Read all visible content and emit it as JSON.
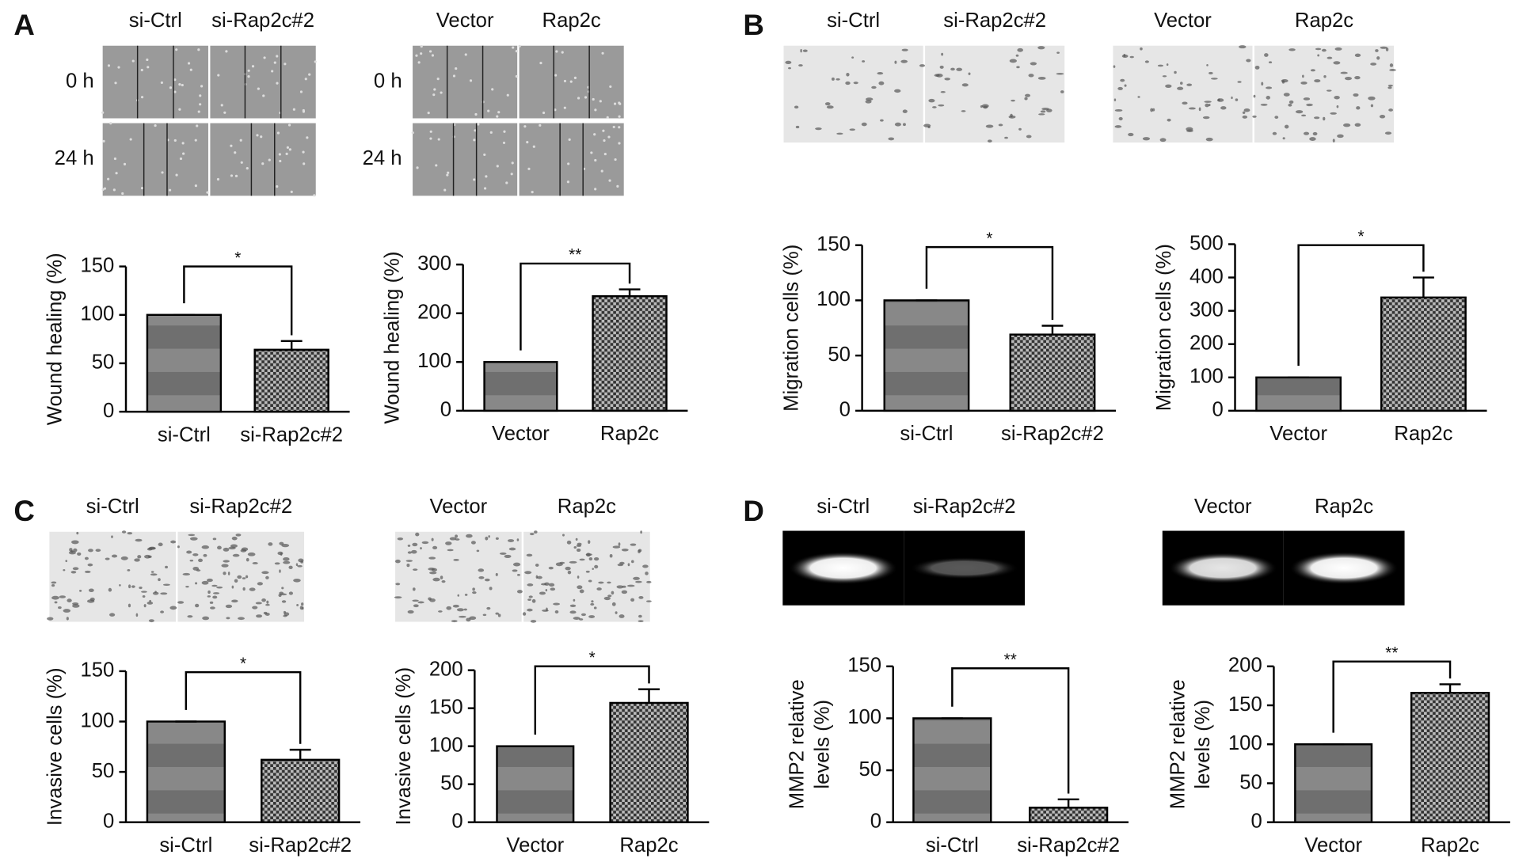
{
  "panels": [
    {
      "label": "A",
      "groups": [
        {
          "columns": [
            "si-Ctrl",
            "si-Rap2c#2"
          ],
          "rows": [
            "0 h",
            "24 h"
          ]
        },
        {
          "columns": [
            "Vector",
            "Rap2c"
          ],
          "rows": [
            "0 h",
            "24 h"
          ]
        }
      ]
    },
    {
      "label": "B",
      "groups": [
        {
          "columns": [
            "si-Ctrl",
            "si-Rap2c#2"
          ]
        },
        {
          "columns": [
            "Vector",
            "Rap2c"
          ]
        }
      ]
    },
    {
      "label": "C",
      "groups": [
        {
          "columns": [
            "si-Ctrl",
            "si-Rap2c#2"
          ]
        },
        {
          "columns": [
            "Vector",
            "Rap2c"
          ]
        }
      ]
    },
    {
      "label": "D",
      "groups": [
        {
          "columns": [
            "si-Ctrl",
            "si-Rap2c#2"
          ]
        },
        {
          "columns": [
            "Vector",
            "Rap2c"
          ]
        }
      ]
    }
  ],
  "chart_data": [
    {
      "type": "bar",
      "ylabel": "Wound healing (%)",
      "categories": [
        "si-Ctrl",
        "si-Rap2c#2"
      ],
      "values": [
        100,
        64
      ],
      "errors": [
        0,
        9
      ],
      "significance": "*",
      "bar_fills": [
        "stripes",
        "checker"
      ],
      "ylim": [
        0,
        150
      ],
      "yticks": [
        0,
        50,
        100,
        150
      ]
    },
    {
      "type": "bar",
      "ylabel": "Wound healing (%)",
      "categories": [
        "Vector",
        "Rap2c"
      ],
      "values": [
        100,
        235
      ],
      "errors": [
        0,
        14
      ],
      "significance": "**",
      "bar_fills": [
        "stripes",
        "checker"
      ],
      "ylim": [
        0,
        300
      ],
      "yticks": [
        0,
        100,
        200,
        300
      ]
    },
    {
      "type": "bar",
      "ylabel": "Migration cells (%)",
      "categories": [
        "si-Ctrl",
        "si-Rap2c#2"
      ],
      "values": [
        100,
        69
      ],
      "errors": [
        0,
        8
      ],
      "significance": "*",
      "bar_fills": [
        "stripes",
        "checker"
      ],
      "ylim": [
        0,
        150
      ],
      "yticks": [
        0,
        50,
        100,
        150
      ]
    },
    {
      "type": "bar",
      "ylabel": "Migration cells (%)",
      "categories": [
        "Vector",
        "Rap2c"
      ],
      "values": [
        100,
        340
      ],
      "errors": [
        0,
        60
      ],
      "significance": "*",
      "bar_fills": [
        "stripes",
        "checker"
      ],
      "ylim": [
        0,
        500
      ],
      "yticks": [
        0,
        100,
        200,
        300,
        400,
        500
      ]
    },
    {
      "type": "bar",
      "ylabel": "Invasive cells (%)",
      "categories": [
        "si-Ctrl",
        "si-Rap2c#2"
      ],
      "values": [
        100,
        62
      ],
      "errors": [
        0,
        10
      ],
      "significance": "*",
      "bar_fills": [
        "stripes",
        "checker"
      ],
      "ylim": [
        0,
        150
      ],
      "yticks": [
        0,
        50,
        100,
        150
      ]
    },
    {
      "type": "bar",
      "ylabel": "Invasive cells (%)",
      "categories": [
        "Vector",
        "Rap2c"
      ],
      "values": [
        100,
        157
      ],
      "errors": [
        0,
        18
      ],
      "significance": "*",
      "bar_fills": [
        "stripes",
        "checker"
      ],
      "ylim": [
        0,
        200
      ],
      "yticks": [
        0,
        50,
        100,
        150,
        200
      ]
    },
    {
      "type": "bar",
      "ylabel": [
        "MMP2 relative",
        "levels (%)"
      ],
      "categories": [
        "si-Ctrl",
        "si-Rap2c#2"
      ],
      "values": [
        100,
        14
      ],
      "errors": [
        0,
        8
      ],
      "significance": "**",
      "bar_fills": [
        "stripes",
        "checker"
      ],
      "ylim": [
        0,
        150
      ],
      "yticks": [
        0,
        50,
        100,
        150
      ]
    },
    {
      "type": "bar",
      "ylabel": [
        "MMP2 relative",
        "levels (%)"
      ],
      "categories": [
        "Vector",
        "Rap2c"
      ],
      "values": [
        100,
        166
      ],
      "errors": [
        0,
        11
      ],
      "significance": "**",
      "bar_fills": [
        "stripes",
        "checker"
      ],
      "ylim": [
        0,
        200
      ],
      "yticks": [
        0,
        50,
        100,
        150,
        200
      ]
    }
  ]
}
